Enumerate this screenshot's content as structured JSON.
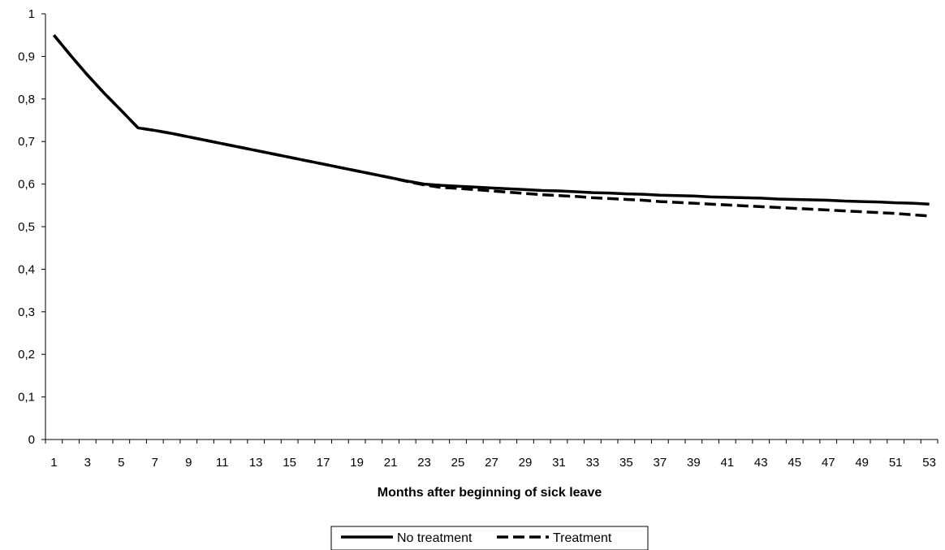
{
  "chart_data": {
    "type": "line",
    "title": "",
    "xlabel": "Months after beginning of sick leave",
    "ylabel": "",
    "x": [
      1,
      2,
      3,
      4,
      5,
      6,
      7,
      8,
      9,
      10,
      11,
      12,
      13,
      14,
      15,
      16,
      17,
      18,
      19,
      20,
      21,
      22,
      23,
      24,
      25,
      26,
      27,
      28,
      29,
      30,
      31,
      32,
      33,
      34,
      35,
      36,
      37,
      38,
      39,
      40,
      41,
      42,
      43,
      44,
      45,
      46,
      47,
      48,
      49,
      50,
      51,
      52,
      53
    ],
    "x_tick_labels": [
      "1",
      "3",
      "5",
      "7",
      "9",
      "11",
      "13",
      "15",
      "17",
      "19",
      "21",
      "23",
      "25",
      "27",
      "29",
      "31",
      "33",
      "35",
      "37",
      "39",
      "41",
      "43",
      "45",
      "47",
      "49",
      "51",
      "53"
    ],
    "y_tick_labels": [
      "0",
      "0,1",
      "0,2",
      "0,3",
      "0,4",
      "0,5",
      "0,6",
      "0,7",
      "0,8",
      "0,9",
      "1"
    ],
    "ylim": [
      0,
      1
    ],
    "grid": false,
    "legend_position": "bottom",
    "series": [
      {
        "name": "No treatment",
        "style": "solid",
        "color": "#000000",
        "values": [
          0.95,
          0.902,
          0.856,
          0.813,
          0.773,
          0.732,
          0.726,
          0.719,
          0.711,
          0.703,
          0.695,
          0.687,
          0.679,
          0.671,
          0.663,
          0.655,
          0.647,
          0.639,
          0.631,
          0.623,
          0.615,
          0.607,
          0.6,
          0.597,
          0.595,
          0.593,
          0.591,
          0.589,
          0.587,
          0.585,
          0.584,
          0.582,
          0.58,
          0.579,
          0.577,
          0.576,
          0.574,
          0.573,
          0.572,
          0.57,
          0.569,
          0.568,
          0.567,
          0.565,
          0.564,
          0.563,
          0.562,
          0.56,
          0.559,
          0.558,
          0.556,
          0.555,
          0.553
        ]
      },
      {
        "name": "Treatment",
        "style": "dashed",
        "color": "#000000",
        "values": [
          0.95,
          0.902,
          0.856,
          0.813,
          0.773,
          0.732,
          0.726,
          0.719,
          0.711,
          0.703,
          0.695,
          0.687,
          0.679,
          0.671,
          0.663,
          0.655,
          0.647,
          0.639,
          0.631,
          0.623,
          0.615,
          0.606,
          0.598,
          0.592,
          0.59,
          0.587,
          0.584,
          0.581,
          0.578,
          0.575,
          0.573,
          0.571,
          0.568,
          0.566,
          0.564,
          0.562,
          0.559,
          0.557,
          0.555,
          0.553,
          0.551,
          0.549,
          0.547,
          0.545,
          0.543,
          0.541,
          0.539,
          0.537,
          0.535,
          0.533,
          0.531,
          0.528,
          0.525
        ]
      }
    ]
  }
}
